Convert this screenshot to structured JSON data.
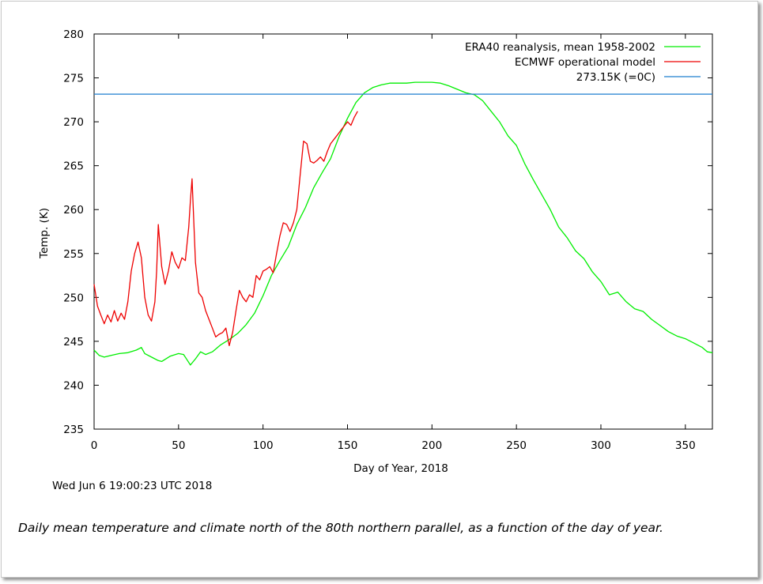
{
  "chart_data": {
    "type": "line",
    "xlabel": "Day of Year, 2018",
    "ylabel": "Temp. (K)",
    "xlim": [
      0,
      366
    ],
    "ylim": [
      235,
      280
    ],
    "xticks": [
      0,
      50,
      100,
      150,
      200,
      250,
      300,
      350
    ],
    "yticks": [
      235,
      240,
      245,
      250,
      255,
      260,
      265,
      270,
      275,
      280
    ],
    "grid": false,
    "legend_position": "top-right",
    "series": [
      {
        "name": "ERA40 reanalysis, mean 1958-2002",
        "color": "#00ee00",
        "x": [
          0,
          3,
          6,
          10,
          15,
          20,
          25,
          28,
          30,
          35,
          38,
          40,
          45,
          50,
          53,
          55,
          57,
          60,
          63,
          66,
          70,
          75,
          80,
          85,
          90,
          95,
          100,
          105,
          110,
          115,
          120,
          125,
          130,
          135,
          140,
          145,
          150,
          155,
          160,
          165,
          170,
          175,
          180,
          185,
          190,
          195,
          200,
          205,
          210,
          215,
          220,
          225,
          230,
          235,
          240,
          245,
          250,
          255,
          260,
          265,
          270,
          275,
          280,
          285,
          290,
          295,
          300,
          305,
          310,
          315,
          320,
          325,
          330,
          335,
          340,
          345,
          350,
          355,
          360,
          363,
          366
        ],
        "y": [
          244.0,
          243.4,
          243.2,
          243.4,
          243.6,
          243.7,
          244.0,
          244.3,
          243.6,
          243.1,
          242.8,
          242.7,
          243.3,
          243.6,
          243.5,
          242.9,
          242.3,
          243.0,
          243.8,
          243.5,
          243.8,
          244.6,
          245.2,
          245.9,
          246.9,
          248.2,
          250.2,
          252.5,
          254.2,
          255.8,
          258.3,
          260.2,
          262.5,
          264.2,
          265.8,
          268.3,
          270.4,
          272.2,
          273.3,
          273.9,
          274.2,
          274.4,
          274.4,
          274.4,
          274.5,
          274.5,
          274.5,
          274.4,
          274.1,
          273.7,
          273.3,
          273.1,
          272.4,
          271.2,
          270.0,
          268.4,
          267.3,
          265.2,
          263.4,
          261.7,
          260.0,
          258.0,
          256.8,
          255.3,
          254.4,
          252.9,
          251.8,
          250.3,
          250.6,
          249.5,
          248.7,
          248.4,
          247.5,
          246.8,
          246.1,
          245.6,
          245.3,
          244.8,
          244.3,
          243.8,
          243.7
        ]
      },
      {
        "name": "ECMWF operational model",
        "color": "#ee0000",
        "x": [
          0,
          2,
          4,
          6,
          8,
          10,
          12,
          14,
          16,
          18,
          20,
          22,
          24,
          26,
          28,
          30,
          32,
          34,
          36,
          37,
          38,
          40,
          42,
          44,
          46,
          48,
          50,
          52,
          54,
          56,
          57,
          58,
          60,
          62,
          64,
          66,
          68,
          70,
          72,
          74,
          76,
          78,
          80,
          82,
          84,
          86,
          88,
          90,
          92,
          94,
          96,
          98,
          100,
          102,
          104,
          106,
          108,
          110,
          112,
          114,
          116,
          118,
          120,
          122,
          124,
          126,
          128,
          130,
          132,
          134,
          136,
          138,
          140,
          142,
          144,
          146,
          148,
          150,
          152,
          154,
          156
        ],
        "y": [
          251.5,
          249.0,
          248.0,
          247.0,
          248.0,
          247.2,
          248.5,
          247.3,
          248.2,
          247.5,
          249.5,
          253.0,
          255.0,
          256.3,
          254.5,
          250.0,
          248.0,
          247.3,
          249.5,
          253.0,
          258.3,
          253.5,
          251.5,
          253.0,
          255.2,
          254.0,
          253.3,
          254.5,
          254.2,
          258.0,
          261.0,
          263.5,
          254.0,
          250.5,
          250.0,
          248.5,
          247.5,
          246.5,
          245.5,
          245.8,
          246.0,
          246.5,
          244.5,
          246.0,
          248.5,
          250.8,
          250.0,
          249.5,
          250.3,
          250.0,
          252.5,
          252.0,
          253.0,
          253.2,
          253.5,
          252.8,
          255.0,
          257.0,
          258.5,
          258.3,
          257.5,
          258.5,
          260.0,
          264.0,
          267.8,
          267.5,
          265.5,
          265.3,
          265.6,
          266.0,
          265.5,
          266.6,
          267.5,
          268.0,
          268.5,
          269.0,
          269.5,
          270.0,
          269.6,
          270.5,
          271.2
        ]
      },
      {
        "name": "273.15K (=0C)",
        "color": "#1f7fcf",
        "x": [
          0,
          366
        ],
        "y": [
          273.15,
          273.15
        ]
      }
    ]
  },
  "timestamp": "Wed Jun  6 19:00:23 UTC 2018",
  "caption": "Daily mean temperature and climate north of the 80th northern parallel, as a function of the day of year."
}
